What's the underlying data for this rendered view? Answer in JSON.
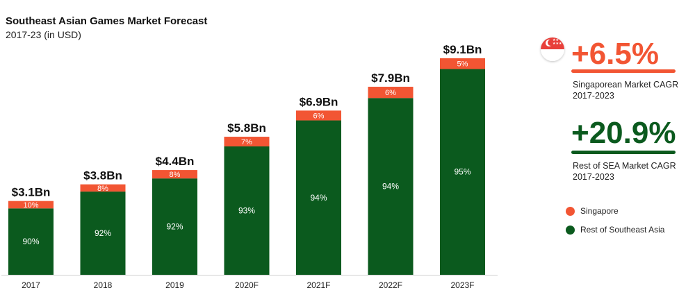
{
  "chart_data": {
    "type": "bar",
    "stacked": true,
    "title": "Southeast Asian Games Market Forecast",
    "subtitle": "2017-23 (in USD)",
    "categories": [
      "2017",
      "2018",
      "2019",
      "2020F",
      "2021F",
      "2022F",
      "2023F"
    ],
    "totals": [
      3.1,
      3.8,
      4.4,
      5.8,
      6.9,
      7.9,
      9.1
    ],
    "total_labels": [
      "$3.1Bn",
      "$3.8Bn",
      "$4.4Bn",
      "$5.8Bn",
      "$6.9Bn",
      "$7.9Bn",
      "$9.1Bn"
    ],
    "series": [
      {
        "name": "Rest of Southeast Asia",
        "color": "#0b5a1e",
        "values_pct": [
          90,
          92,
          92,
          93,
          94,
          94,
          95
        ],
        "labels": [
          "90%",
          "92%",
          "92%",
          "93%",
          "94%",
          "94%",
          "95%"
        ]
      },
      {
        "name": "Singapore",
        "color": "#f25533",
        "values_pct": [
          10,
          8,
          8,
          7,
          6,
          6,
          5
        ],
        "labels": [
          "10%",
          "8%",
          "8%",
          "7%",
          "6%",
          "6%",
          "5%"
        ]
      }
    ],
    "ylim": [
      0,
      10
    ],
    "xlabel": "",
    "ylabel": ""
  },
  "kpis": [
    {
      "value": "+6.5%",
      "label_line1": "Singaporean Market CAGR",
      "label_line2": "2017-2023",
      "color": "#f25533",
      "icon": "singapore-flag-icon"
    },
    {
      "value": "+20.9%",
      "label_line1": "Rest of SEA Market CAGR",
      "label_line2": "2017-2023",
      "color": "#0b5a1e"
    }
  ],
  "legend": [
    {
      "label": "Singapore",
      "color": "#f25533"
    },
    {
      "label": "Rest of Southeast Asia",
      "color": "#0b5a1e"
    }
  ]
}
